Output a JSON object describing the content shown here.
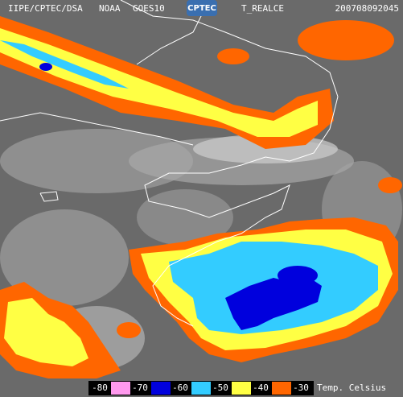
{
  "header": {
    "source": "IIPE/CPTEC/DSA",
    "agency": "NOAA",
    "satellite": "GOES10",
    "logo": "CPTEC",
    "product": "T_REALCE",
    "timestamp": "200708092045"
  },
  "legend": {
    "labels": [
      "-80",
      "-70",
      "-60",
      "-50",
      "-40",
      "-30"
    ],
    "colors": [
      "#ff99ee",
      "#0000dd",
      "#33ccff",
      "#ffff44",
      "#ff6600"
    ],
    "caption": "Temp. Celsius"
  }
}
